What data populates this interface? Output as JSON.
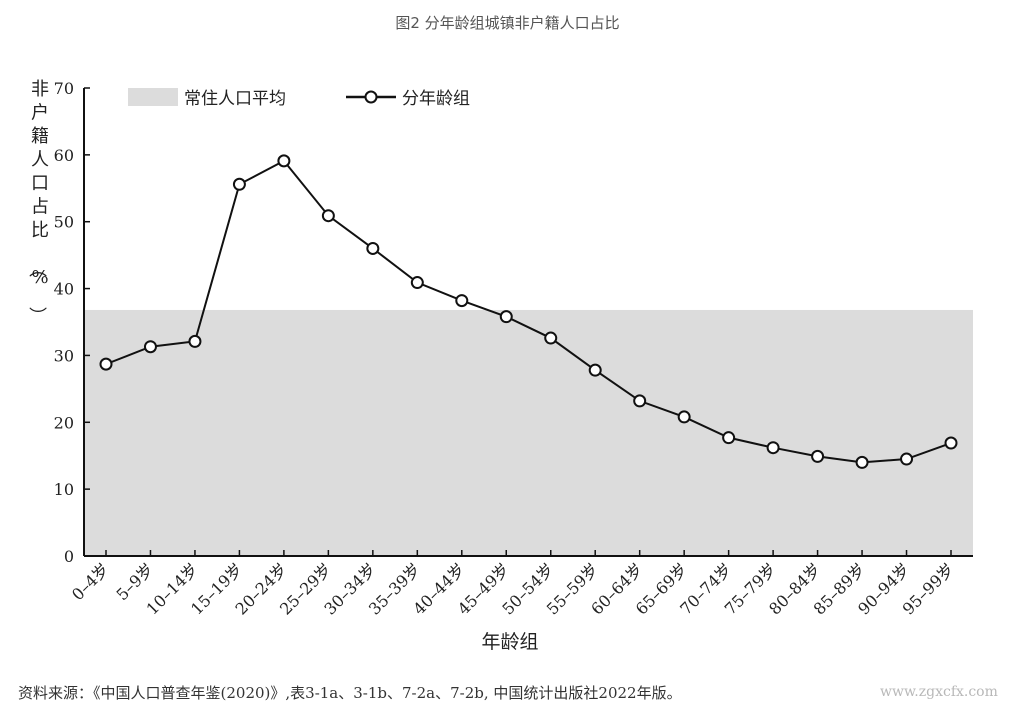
{
  "title": "图2 分年龄组城镇非户籍人口占比",
  "source": "资料来源：《中国人口普查年鉴(2020)》,表3-1a、3-1b、7-2a、7-2b, 中国统计出版社2022年版。",
  "watermark": "www.zgxcfx.com",
  "chart_data": {
    "type": "line",
    "ylabel": "非户籍人口占比（%）",
    "xlabel": "年龄组",
    "ylim": [
      0,
      70
    ],
    "yticks": [
      0,
      10,
      20,
      30,
      40,
      50,
      60,
      70
    ],
    "grid": false,
    "legend_position": "top-left",
    "categories": [
      "0–4岁",
      "5–9岁",
      "10–14岁",
      "15–19岁",
      "20–24岁",
      "25–29岁",
      "30–34岁",
      "35–39岁",
      "40–44岁",
      "45–49岁",
      "50–54岁",
      "55–59岁",
      "60–64岁",
      "65–69岁",
      "70–74岁",
      "75–79岁",
      "80–84岁",
      "85–89岁",
      "90–94岁",
      "95–99岁"
    ],
    "series": [
      {
        "name": "分年龄组",
        "values": [
          28.7,
          31.3,
          32.1,
          55.6,
          59.1,
          50.9,
          46.0,
          40.9,
          38.2,
          35.8,
          32.6,
          27.8,
          23.2,
          20.8,
          17.7,
          16.2,
          14.9,
          14.0,
          14.5,
          16.9
        ]
      }
    ],
    "average": {
      "name": "常住人口平均",
      "value": 36.8
    },
    "colors": {
      "band": "#dcdcdc",
      "line": "#111111"
    }
  }
}
